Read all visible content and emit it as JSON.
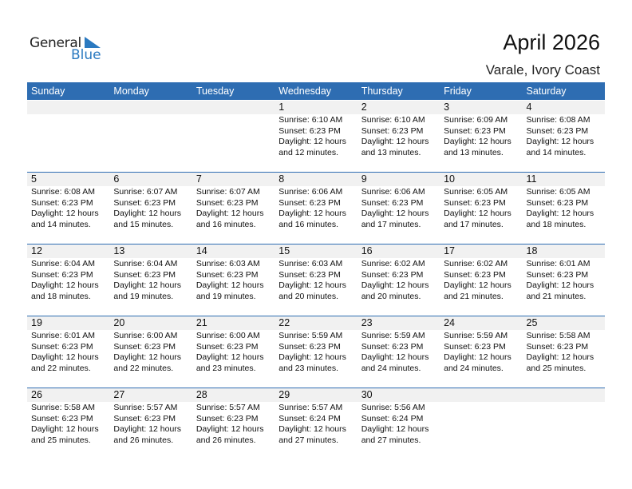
{
  "logo": {
    "general": "General",
    "blue": "Blue"
  },
  "title": "April 2026",
  "location": "Varale, Ivory Coast",
  "colors": {
    "header": "#2e6db2",
    "strip": "#f1f1f1",
    "logo_blue": "#2a79c0"
  },
  "weekdays": [
    "Sunday",
    "Monday",
    "Tuesday",
    "Wednesday",
    "Thursday",
    "Friday",
    "Saturday"
  ],
  "weeks": [
    [
      null,
      null,
      null,
      {
        "day": "1",
        "sunrise": "Sunrise: 6:10 AM",
        "sunset": "Sunset: 6:23 PM",
        "daylight": "Daylight: 12 hours",
        "minutes": "and 12 minutes."
      },
      {
        "day": "2",
        "sunrise": "Sunrise: 6:10 AM",
        "sunset": "Sunset: 6:23 PM",
        "daylight": "Daylight: 12 hours",
        "minutes": "and 13 minutes."
      },
      {
        "day": "3",
        "sunrise": "Sunrise: 6:09 AM",
        "sunset": "Sunset: 6:23 PM",
        "daylight": "Daylight: 12 hours",
        "minutes": "and 13 minutes."
      },
      {
        "day": "4",
        "sunrise": "Sunrise: 6:08 AM",
        "sunset": "Sunset: 6:23 PM",
        "daylight": "Daylight: 12 hours",
        "minutes": "and 14 minutes."
      }
    ],
    [
      {
        "day": "5",
        "sunrise": "Sunrise: 6:08 AM",
        "sunset": "Sunset: 6:23 PM",
        "daylight": "Daylight: 12 hours",
        "minutes": "and 14 minutes."
      },
      {
        "day": "6",
        "sunrise": "Sunrise: 6:07 AM",
        "sunset": "Sunset: 6:23 PM",
        "daylight": "Daylight: 12 hours",
        "minutes": "and 15 minutes."
      },
      {
        "day": "7",
        "sunrise": "Sunrise: 6:07 AM",
        "sunset": "Sunset: 6:23 PM",
        "daylight": "Daylight: 12 hours",
        "minutes": "and 16 minutes."
      },
      {
        "day": "8",
        "sunrise": "Sunrise: 6:06 AM",
        "sunset": "Sunset: 6:23 PM",
        "daylight": "Daylight: 12 hours",
        "minutes": "and 16 minutes."
      },
      {
        "day": "9",
        "sunrise": "Sunrise: 6:06 AM",
        "sunset": "Sunset: 6:23 PM",
        "daylight": "Daylight: 12 hours",
        "minutes": "and 17 minutes."
      },
      {
        "day": "10",
        "sunrise": "Sunrise: 6:05 AM",
        "sunset": "Sunset: 6:23 PM",
        "daylight": "Daylight: 12 hours",
        "minutes": "and 17 minutes."
      },
      {
        "day": "11",
        "sunrise": "Sunrise: 6:05 AM",
        "sunset": "Sunset: 6:23 PM",
        "daylight": "Daylight: 12 hours",
        "minutes": "and 18 minutes."
      }
    ],
    [
      {
        "day": "12",
        "sunrise": "Sunrise: 6:04 AM",
        "sunset": "Sunset: 6:23 PM",
        "daylight": "Daylight: 12 hours",
        "minutes": "and 18 minutes."
      },
      {
        "day": "13",
        "sunrise": "Sunrise: 6:04 AM",
        "sunset": "Sunset: 6:23 PM",
        "daylight": "Daylight: 12 hours",
        "minutes": "and 19 minutes."
      },
      {
        "day": "14",
        "sunrise": "Sunrise: 6:03 AM",
        "sunset": "Sunset: 6:23 PM",
        "daylight": "Daylight: 12 hours",
        "minutes": "and 19 minutes."
      },
      {
        "day": "15",
        "sunrise": "Sunrise: 6:03 AM",
        "sunset": "Sunset: 6:23 PM",
        "daylight": "Daylight: 12 hours",
        "minutes": "and 20 minutes."
      },
      {
        "day": "16",
        "sunrise": "Sunrise: 6:02 AM",
        "sunset": "Sunset: 6:23 PM",
        "daylight": "Daylight: 12 hours",
        "minutes": "and 20 minutes."
      },
      {
        "day": "17",
        "sunrise": "Sunrise: 6:02 AM",
        "sunset": "Sunset: 6:23 PM",
        "daylight": "Daylight: 12 hours",
        "minutes": "and 21 minutes."
      },
      {
        "day": "18",
        "sunrise": "Sunrise: 6:01 AM",
        "sunset": "Sunset: 6:23 PM",
        "daylight": "Daylight: 12 hours",
        "minutes": "and 21 minutes."
      }
    ],
    [
      {
        "day": "19",
        "sunrise": "Sunrise: 6:01 AM",
        "sunset": "Sunset: 6:23 PM",
        "daylight": "Daylight: 12 hours",
        "minutes": "and 22 minutes."
      },
      {
        "day": "20",
        "sunrise": "Sunrise: 6:00 AM",
        "sunset": "Sunset: 6:23 PM",
        "daylight": "Daylight: 12 hours",
        "minutes": "and 22 minutes."
      },
      {
        "day": "21",
        "sunrise": "Sunrise: 6:00 AM",
        "sunset": "Sunset: 6:23 PM",
        "daylight": "Daylight: 12 hours",
        "minutes": "and 23 minutes."
      },
      {
        "day": "22",
        "sunrise": "Sunrise: 5:59 AM",
        "sunset": "Sunset: 6:23 PM",
        "daylight": "Daylight: 12 hours",
        "minutes": "and 23 minutes."
      },
      {
        "day": "23",
        "sunrise": "Sunrise: 5:59 AM",
        "sunset": "Sunset: 6:23 PM",
        "daylight": "Daylight: 12 hours",
        "minutes": "and 24 minutes."
      },
      {
        "day": "24",
        "sunrise": "Sunrise: 5:59 AM",
        "sunset": "Sunset: 6:23 PM",
        "daylight": "Daylight: 12 hours",
        "minutes": "and 24 minutes."
      },
      {
        "day": "25",
        "sunrise": "Sunrise: 5:58 AM",
        "sunset": "Sunset: 6:23 PM",
        "daylight": "Daylight: 12 hours",
        "minutes": "and 25 minutes."
      }
    ],
    [
      {
        "day": "26",
        "sunrise": "Sunrise: 5:58 AM",
        "sunset": "Sunset: 6:23 PM",
        "daylight": "Daylight: 12 hours",
        "minutes": "and 25 minutes."
      },
      {
        "day": "27",
        "sunrise": "Sunrise: 5:57 AM",
        "sunset": "Sunset: 6:23 PM",
        "daylight": "Daylight: 12 hours",
        "minutes": "and 26 minutes."
      },
      {
        "day": "28",
        "sunrise": "Sunrise: 5:57 AM",
        "sunset": "Sunset: 6:23 PM",
        "daylight": "Daylight: 12 hours",
        "minutes": "and 26 minutes."
      },
      {
        "day": "29",
        "sunrise": "Sunrise: 5:57 AM",
        "sunset": "Sunset: 6:24 PM",
        "daylight": "Daylight: 12 hours",
        "minutes": "and 27 minutes."
      },
      {
        "day": "30",
        "sunrise": "Sunrise: 5:56 AM",
        "sunset": "Sunset: 6:24 PM",
        "daylight": "Daylight: 12 hours",
        "minutes": "and 27 minutes."
      },
      null,
      null
    ]
  ]
}
